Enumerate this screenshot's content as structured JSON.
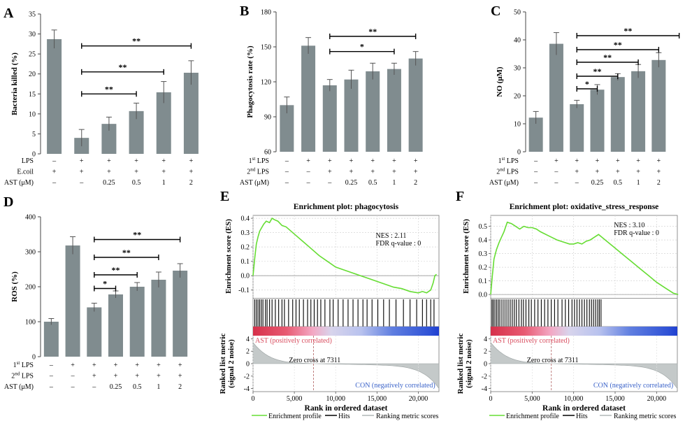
{
  "colors": {
    "bar": "#808c8f",
    "es_line": "#66dd33",
    "metric": "#c4c9c9",
    "pos": "#d84b5d",
    "neg": "#3b63c9",
    "panel_label": "#000000"
  },
  "chart_data": [
    {
      "id": "A",
      "type": "bar",
      "panel_label": "A",
      "ylabel": "Bacteria killed (%)",
      "ylim": [
        0,
        35
      ],
      "yticks": [
        0,
        5,
        10,
        15,
        20,
        25,
        30,
        35
      ],
      "values": [
        28.7,
        4.0,
        7.5,
        10.7,
        15.4,
        20.3
      ],
      "errors": [
        2.3,
        2.1,
        1.7,
        2.0,
        2.7,
        3.0
      ],
      "conditions": [
        {
          "label": "LPS",
          "values": [
            "–",
            "+",
            "+",
            "+",
            "+",
            "+"
          ]
        },
        {
          "label": "E.coil",
          "values": [
            "+",
            "+",
            "+",
            "+",
            "+",
            "+"
          ]
        },
        {
          "label": "AST (μM)",
          "values": [
            "–",
            "–",
            "0.25",
            "0.5",
            "1",
            "2"
          ]
        }
      ],
      "significance": [
        {
          "from": 2,
          "to": 4,
          "y": 15.0,
          "label": "**"
        },
        {
          "from": 2,
          "to": 5,
          "y": 20.5,
          "label": "**"
        },
        {
          "from": 2,
          "to": 6,
          "y": 27.0,
          "label": "**"
        }
      ]
    },
    {
      "id": "B",
      "type": "bar",
      "panel_label": "B",
      "ylabel": "Phagocytosis rate (%)",
      "ylim": [
        60,
        180
      ],
      "yticks": [
        60,
        90,
        120,
        150,
        180
      ],
      "values": [
        100,
        151,
        117,
        122,
        129,
        131,
        140
      ],
      "errors": [
        7,
        7,
        5,
        8,
        7,
        5,
        6
      ],
      "conditions": [
        {
          "label": "1st LPS",
          "values": [
            "–",
            "+",
            "+",
            "+",
            "+",
            "+",
            "+"
          ]
        },
        {
          "label": "2nd LPS",
          "values": [
            "–",
            "–",
            "+",
            "+",
            "+",
            "+",
            "+"
          ]
        },
        {
          "label": "AST (μM)",
          "values": [
            "–",
            "–",
            "–",
            "0.25",
            "0.5",
            "1",
            "2"
          ]
        }
      ],
      "significance": [
        {
          "from": 3,
          "to": 6,
          "y": 146,
          "label": "*"
        },
        {
          "from": 3,
          "to": 7,
          "y": 159,
          "label": "**"
        }
      ]
    },
    {
      "id": "C",
      "type": "bar",
      "panel_label": "C",
      "ylabel": "NO (μM)",
      "ylim": [
        0,
        50
      ],
      "yticks": [
        0,
        10,
        20,
        30,
        40,
        50
      ],
      "values": [
        12.2,
        38.6,
        17.0,
        22.2,
        26.7,
        28.8,
        32.8
      ],
      "errors": [
        2.2,
        4.0,
        1.4,
        1.8,
        1.2,
        2.4,
        2.6
      ],
      "conditions": [
        {
          "label": "1st LPS",
          "values": [
            "–",
            "+",
            "+",
            "+",
            "+",
            "+",
            "+"
          ]
        },
        {
          "label": "2nd LPS",
          "values": [
            "–",
            "–",
            "+",
            "+",
            "+",
            "+",
            "+"
          ]
        },
        {
          "label": "AST (μM)",
          "values": [
            "–",
            "–",
            "–",
            "0.25",
            "0.5",
            "1",
            "2"
          ]
        }
      ],
      "significance": [
        {
          "from": 3,
          "to": 4,
          "y": 22.5,
          "label": "*"
        },
        {
          "from": 3,
          "to": 5,
          "y": 27.0,
          "label": "**"
        },
        {
          "from": 3,
          "to": 6,
          "y": 32.0,
          "label": "**"
        },
        {
          "from": 3,
          "to": 7,
          "y": 36.5,
          "label": "**"
        },
        {
          "from": 3,
          "to": 8,
          "y": 41.5,
          "label": "**"
        }
      ]
    },
    {
      "id": "D",
      "type": "bar",
      "panel_label": "D",
      "ylabel": "ROS (%)",
      "ylim": [
        0,
        400
      ],
      "yticks": [
        0,
        100,
        200,
        300,
        400
      ],
      "values": [
        100,
        318,
        141,
        178,
        200,
        220,
        246
      ],
      "errors": [
        9,
        25,
        12,
        10,
        12,
        22,
        20
      ],
      "conditions": [
        {
          "label": "1st LPS",
          "values": [
            "–",
            "+",
            "+",
            "+",
            "+",
            "+",
            "+"
          ]
        },
        {
          "label": "2nd LPS",
          "values": [
            "–",
            "–",
            "+",
            "+",
            "+",
            "+",
            "+"
          ]
        },
        {
          "label": "AST (μM)",
          "values": [
            "–",
            "–",
            "–",
            "0.25",
            "0.5",
            "1",
            "2"
          ]
        }
      ],
      "significance": [
        {
          "from": 3,
          "to": 4,
          "y": 195,
          "label": "*"
        },
        {
          "from": 3,
          "to": 5,
          "y": 234,
          "label": "**"
        },
        {
          "from": 3,
          "to": 6,
          "y": 284,
          "label": "**"
        },
        {
          "from": 3,
          "to": 7,
          "y": 335,
          "label": "**"
        }
      ]
    },
    {
      "id": "E",
      "type": "line",
      "panel_label": "E",
      "title": "Enrichment plot: phagocytosis",
      "es_ylabel": "Enrichment score (ES)",
      "metric_ylabel": "Ranked list metric (signal 2 noise)",
      "xlabel": "Rank in ordered dataset",
      "xlim": [
        0,
        22500
      ],
      "xticks": [
        0,
        5000,
        10000,
        15000,
        20000
      ],
      "es_ylim": [
        -0.15,
        0.42
      ],
      "es_yticks": [
        -0.1,
        0.0,
        0.1,
        0.2,
        0.3,
        0.4
      ],
      "metric_ylim": [
        -4.5,
        4.5
      ],
      "metric_yticks": [
        -4,
        -2,
        0,
        2,
        4
      ],
      "es_x": [
        0,
        200,
        400,
        600,
        800,
        1000,
        1300,
        1600,
        2000,
        2300,
        2600,
        3000,
        3500,
        4000,
        5000,
        6000,
        7000,
        8000,
        9000,
        10000,
        11000,
        12000,
        13000,
        14000,
        15000,
        16000,
        17000,
        18000,
        19000,
        20000,
        20500,
        21000,
        21500,
        21800,
        22000,
        22200
      ],
      "es_y": [
        0.0,
        0.12,
        0.22,
        0.27,
        0.31,
        0.33,
        0.36,
        0.38,
        0.37,
        0.4,
        0.39,
        0.38,
        0.35,
        0.34,
        0.29,
        0.24,
        0.19,
        0.14,
        0.1,
        0.06,
        0.04,
        0.02,
        0.0,
        -0.02,
        -0.04,
        -0.06,
        -0.08,
        -0.09,
        -0.11,
        -0.12,
        -0.11,
        -0.12,
        -0.1,
        -0.05,
        0.0,
        0.01
      ],
      "hits_x": [
        200,
        400,
        600,
        800,
        1000,
        1200,
        1500,
        1700,
        2000,
        2300,
        2700,
        3100,
        3500,
        3800,
        4300,
        4800,
        5200,
        5600,
        6100,
        6600,
        7000,
        7400,
        7800,
        8200,
        8700,
        9300,
        9700,
        10300,
        10900,
        11500,
        12100,
        12700,
        13300,
        13800,
        14400,
        15100,
        15800,
        16500,
        17300,
        18200,
        19000,
        19800,
        20500,
        21000,
        21500,
        21900
      ],
      "nes_text": "NES : 2.11",
      "fdr_text": "FDR q-value : 0",
      "pos_label": "AST (positively correlated)",
      "neg_label": "CON (negatively correlated)",
      "zero_cross_label": "Zero cross at 7311",
      "zero_cross_x": 7311,
      "legend": [
        "Enrichment profile",
        "Hits",
        "Ranking metric scores"
      ]
    },
    {
      "id": "F",
      "type": "line",
      "panel_label": "F",
      "title": "Enrichment plot: oxidative_stress_response",
      "es_ylabel": "Enrichment score (ES)",
      "metric_ylabel": "Ranked list metric (signal 2 noise)",
      "xlabel": "Rank in ordered dataset",
      "xlim": [
        0,
        22500
      ],
      "xticks": [
        0,
        5000,
        10000,
        15000,
        20000
      ],
      "es_ylim": [
        -0.02,
        0.58
      ],
      "es_yticks": [
        0.0,
        0.1,
        0.2,
        0.3,
        0.4,
        0.5
      ],
      "metric_ylim": [
        -4.5,
        4.5
      ],
      "metric_yticks": [
        -4,
        -2,
        0,
        2,
        4
      ],
      "es_x": [
        0,
        200,
        400,
        700,
        1000,
        1300,
        1600,
        2000,
        2500,
        3000,
        3500,
        4000,
        4500,
        5000,
        5500,
        6000,
        7000,
        8000,
        9000,
        9500,
        10000,
        10500,
        11000,
        11500,
        12000,
        12500,
        13000,
        14000,
        15000,
        16000,
        17000,
        18000,
        19000,
        20000,
        21000,
        22000,
        22600
      ],
      "es_y": [
        0.0,
        0.14,
        0.26,
        0.33,
        0.38,
        0.42,
        0.46,
        0.53,
        0.52,
        0.5,
        0.48,
        0.5,
        0.49,
        0.49,
        0.48,
        0.46,
        0.43,
        0.4,
        0.38,
        0.37,
        0.37,
        0.38,
        0.37,
        0.39,
        0.4,
        0.42,
        0.44,
        0.39,
        0.34,
        0.29,
        0.24,
        0.19,
        0.14,
        0.09,
        0.05,
        0.01,
        0.0
      ],
      "hits_x": [
        150,
        300,
        500,
        700,
        900,
        1100,
        1350,
        1600,
        1850,
        2100,
        2350,
        2600,
        2850,
        3100,
        3400,
        3700,
        3950,
        4250,
        4600,
        4900,
        5300,
        5700,
        6100,
        6500,
        6900,
        7300,
        7700,
        8100,
        8600,
        9000,
        9400,
        9800,
        10100,
        10400,
        10700,
        11000,
        11300,
        11600,
        11900,
        12150,
        12400,
        12650,
        12900,
        13100,
        13300
      ],
      "nes_text": "NES : 3.10",
      "fdr_text": "FDR q-value : 0",
      "pos_label": "AST (positively correlated)",
      "neg_label": "CON (negatively correlated)",
      "zero_cross_label": "Zero cross at 7311",
      "zero_cross_x": 7311,
      "legend": [
        "Enrichment profile",
        "Hits",
        "Ranking metric scores"
      ]
    }
  ]
}
